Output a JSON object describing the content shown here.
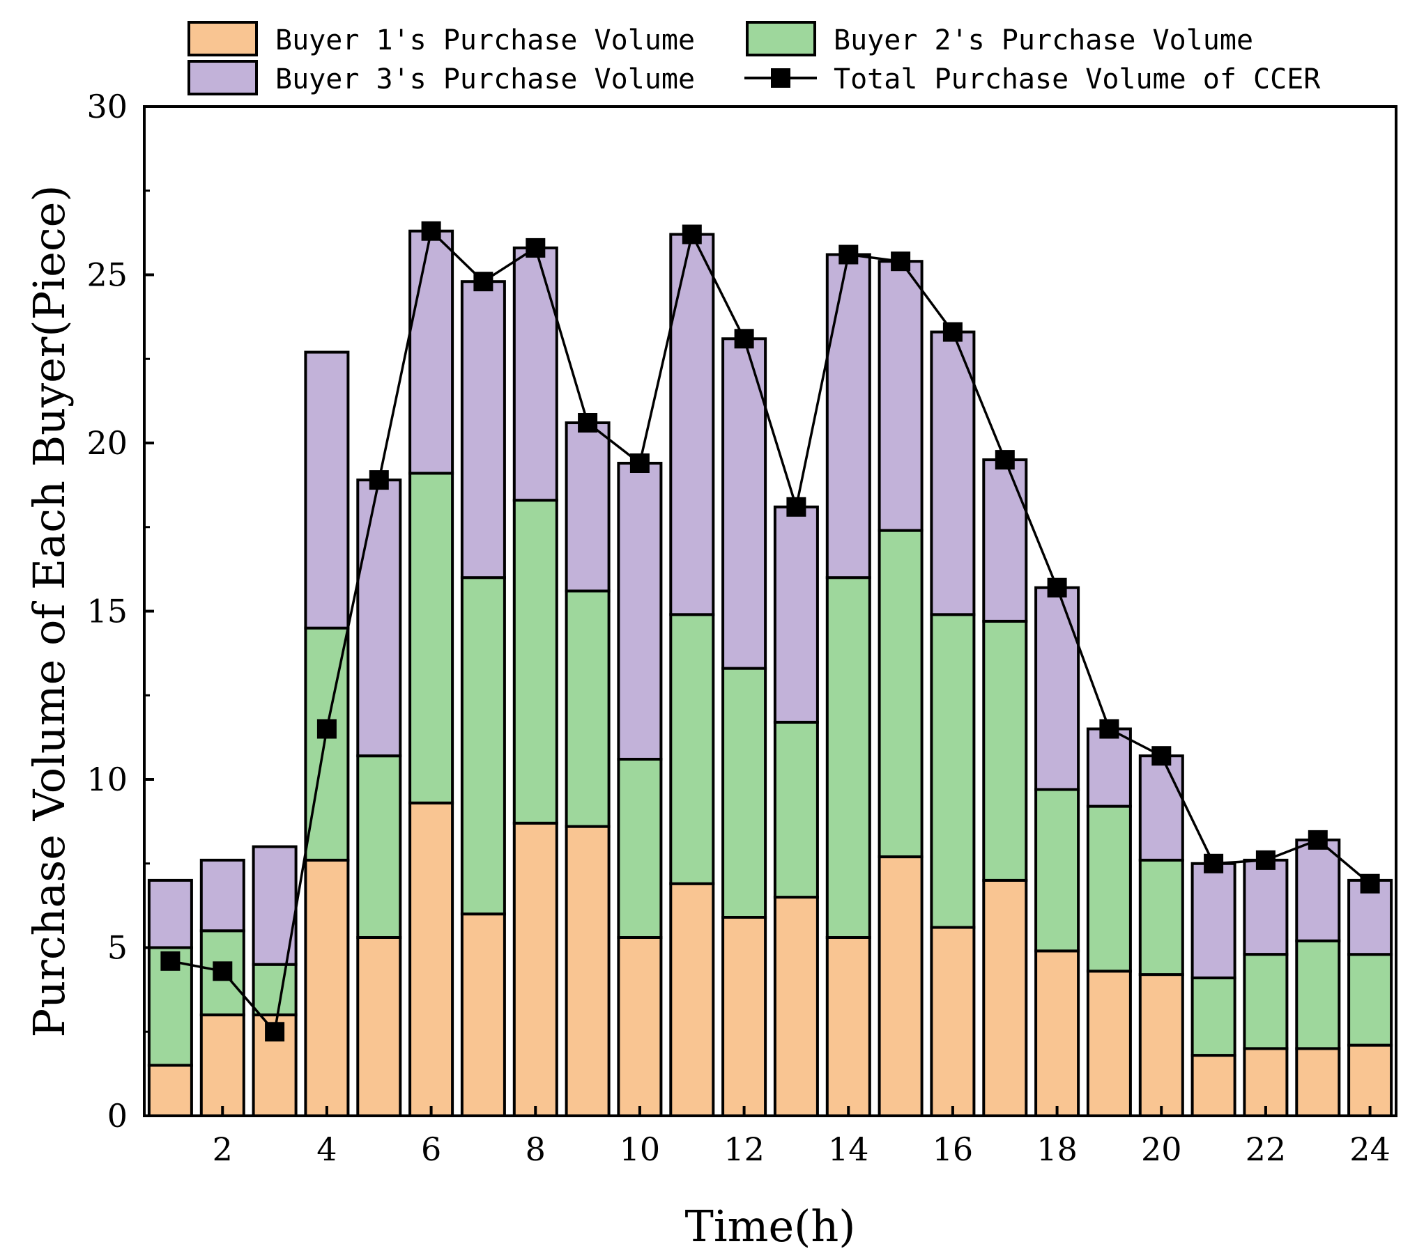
{
  "chart_data": {
    "type": "bar",
    "stacked": true,
    "title": "",
    "xlabel": "Time(h)",
    "ylabel": "Purchase Volume of Each Buyer(Piece)",
    "ylim": [
      0,
      30
    ],
    "yticks": [
      0,
      5,
      10,
      15,
      20,
      25,
      30
    ],
    "xticks": [
      2,
      4,
      6,
      8,
      10,
      12,
      14,
      16,
      18,
      20,
      22,
      24
    ],
    "x": [
      1,
      2,
      3,
      4,
      5,
      6,
      7,
      8,
      9,
      10,
      11,
      12,
      13,
      14,
      15,
      16,
      17,
      18,
      19,
      20,
      21,
      22,
      23,
      24
    ],
    "series": [
      {
        "name": "Buyer 1's Purchase Volume",
        "type": "bar",
        "color": "#f9c592",
        "values": [
          1.5,
          3.0,
          3.0,
          7.6,
          5.3,
          9.3,
          6.0,
          8.7,
          8.6,
          5.3,
          6.9,
          5.9,
          6.5,
          5.3,
          7.7,
          5.6,
          7.0,
          4.9,
          4.3,
          4.2,
          1.8,
          2.0,
          2.0,
          2.1
        ]
      },
      {
        "name": "Buyer 2's Purchase Volume",
        "type": "bar",
        "color": "#9ed79c",
        "values": [
          3.5,
          2.5,
          1.5,
          6.9,
          5.4,
          9.8,
          10.0,
          9.6,
          7.0,
          5.3,
          8.0,
          7.4,
          5.2,
          10.7,
          9.7,
          9.3,
          7.7,
          4.8,
          4.9,
          3.4,
          2.3,
          2.8,
          3.2,
          2.7
        ]
      },
      {
        "name": "Buyer 3's Purchase Volume",
        "type": "bar",
        "color": "#c2b2d9",
        "values": [
          2.0,
          2.1,
          3.5,
          8.2,
          8.2,
          7.2,
          8.8,
          7.5,
          5.0,
          8.8,
          11.3,
          9.8,
          6.4,
          9.6,
          8.0,
          8.4,
          4.8,
          6.0,
          2.3,
          3.1,
          3.4,
          2.8,
          3.0,
          2.2
        ]
      },
      {
        "name": "Total Purchase Volume of CCER",
        "type": "line",
        "marker": "square",
        "color": "#000000",
        "values": [
          4.6,
          4.3,
          2.5,
          11.5,
          18.9,
          26.3,
          24.8,
          25.8,
          20.6,
          19.4,
          26.2,
          23.1,
          18.1,
          25.6,
          25.4,
          23.3,
          19.5,
          15.7,
          11.5,
          10.7,
          7.5,
          7.6,
          8.2,
          6.9
        ]
      }
    ],
    "legend": {
      "placement": "top",
      "items": [
        "Buyer 1's Purchase Volume",
        "Buyer 2's Purchase Volume",
        "Buyer 3's Purchase Volume",
        "Total Purchase Volume of CCER"
      ]
    }
  }
}
